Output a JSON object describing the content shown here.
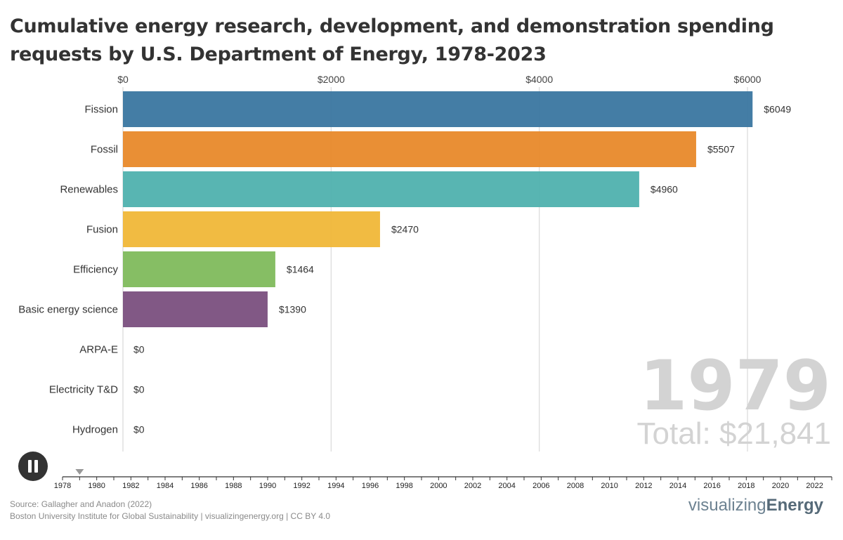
{
  "title": "Cumulative energy research, development, and demonstration spending requests by U.S. Department of Energy, 1978-2023",
  "chart_data": {
    "type": "bar",
    "orientation": "horizontal",
    "categories": [
      "Fission",
      "Fossil",
      "Renewables",
      "Fusion",
      "Efficiency",
      "Basic energy science",
      "ARPA-E",
      "Electricity T&D",
      "Hydrogen"
    ],
    "values": [
      6049,
      5507,
      4960,
      2470,
      1464,
      1390,
      0,
      0,
      0
    ],
    "value_labels": [
      "$6049",
      "$5507",
      "$4960",
      "$2470",
      "$1464",
      "$1390",
      "$0",
      "$0",
      "$0"
    ],
    "colors": [
      "#3a76a0",
      "#e8892a",
      "#4fb1ae",
      "#f0b738",
      "#7fba5c",
      "#7a4f7e",
      "#999999",
      "#999999",
      "#999999"
    ],
    "xlim": [
      0,
      6000
    ],
    "x_ticks": [
      0,
      2000,
      4000,
      6000
    ],
    "x_tick_labels": [
      "$0",
      "$2000",
      "$4000",
      "$6000"
    ],
    "grid": true,
    "year": "1979",
    "total_label": "Total: $21,841",
    "timeline": {
      "start": 1978,
      "end": 2023,
      "current": 1979,
      "tick_labels": [
        "1978",
        "1980",
        "1982",
        "1984",
        "1986",
        "1988",
        "1990",
        "1992",
        "1994",
        "1996",
        "1998",
        "2000",
        "2002",
        "2004",
        "2006",
        "2008",
        "2010",
        "2012",
        "2014",
        "2016",
        "2018",
        "2020",
        "2022"
      ]
    }
  },
  "controls": {
    "pause_icon": "pause-icon"
  },
  "footer": {
    "source": "Source: Gallagher and Anadon (2022)",
    "credit": "Boston University Institute for Global Sustainability | visualizingenergy.org | CC BY 4.0",
    "brand_light": "visualizing",
    "brand_bold": "Energy"
  }
}
